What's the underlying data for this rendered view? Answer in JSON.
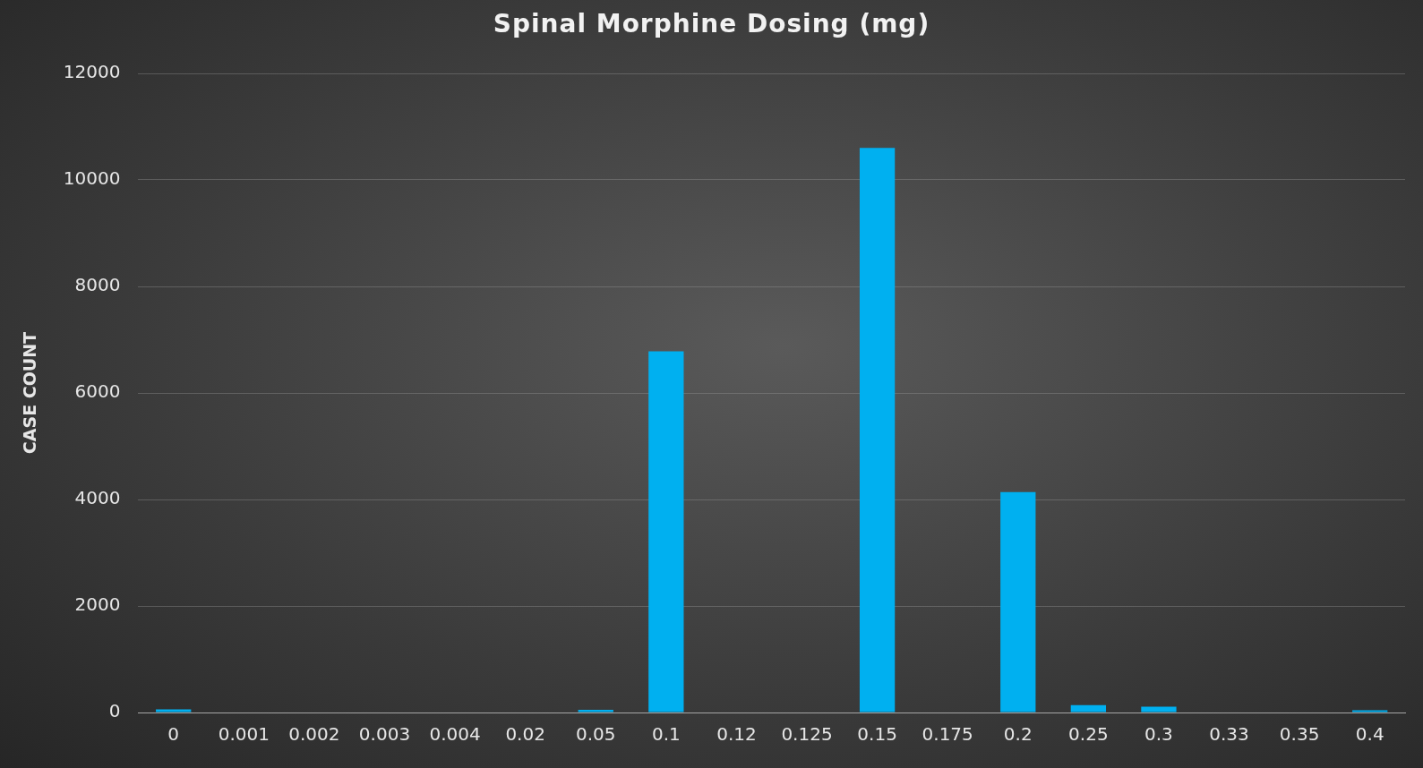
{
  "chart_data": {
    "type": "bar",
    "title": "Spinal Morphine Dosing (mg)",
    "ylabel": "CASE COUNT",
    "categories": [
      "0",
      "0.001",
      "0.002",
      "0.003",
      "0.004",
      "0.02",
      "0.05",
      "0.1",
      "0.12",
      "0.125",
      "0.15",
      "0.175",
      "0.2",
      "0.25",
      "0.3",
      "0.33",
      "0.35",
      "0.4"
    ],
    "values": [
      60,
      0,
      10,
      10,
      0,
      10,
      50,
      6780,
      10,
      10,
      10600,
      10,
      4140,
      140,
      110,
      0,
      0,
      40
    ],
    "color": "#00b0f0",
    "ylim": [
      0,
      12000
    ],
    "yticks": [
      0,
      2000,
      4000,
      6000,
      8000,
      10000,
      12000
    ],
    "grid": "y"
  }
}
